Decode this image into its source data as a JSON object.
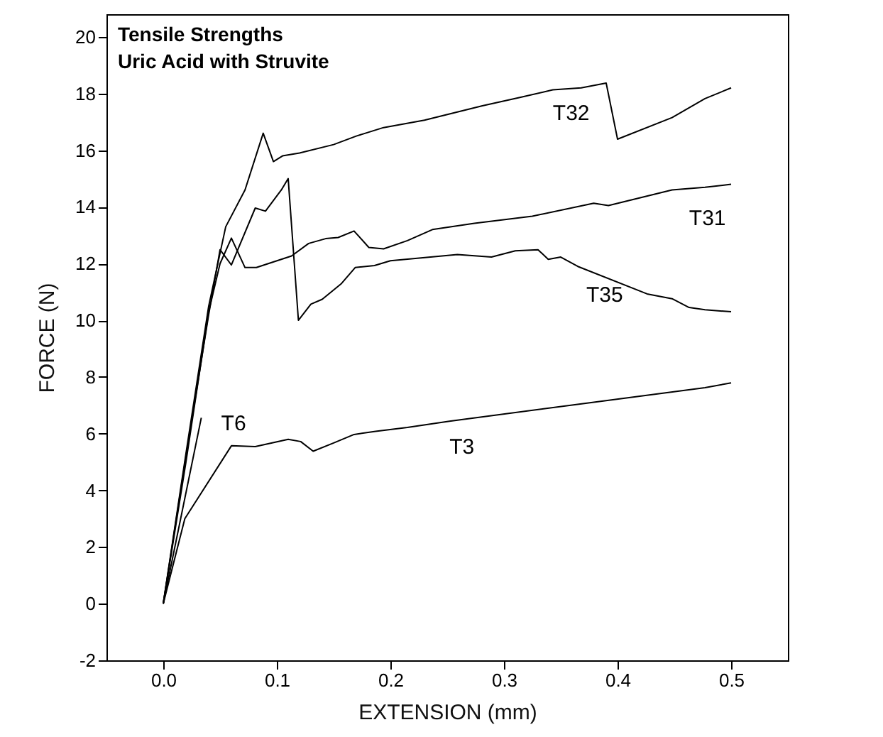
{
  "chart_data": {
    "type": "line",
    "title": "Tensile Strengths",
    "subtitle": "Uric Acid with Struvite",
    "xlabel": "EXTENSION (mm)",
    "ylabel": "FORCE (N)",
    "xlim": [
      -0.05,
      0.55
    ],
    "ylim": [
      -2,
      20.8
    ],
    "xticks": [
      {
        "value": 0,
        "label": "0.0"
      },
      0.1,
      0.2,
      0.3,
      0.4,
      0.5
    ],
    "yticks": [
      -2,
      0,
      2,
      4,
      6,
      8,
      10,
      12,
      14,
      16,
      18,
      20
    ],
    "grid": false,
    "legend": false,
    "marker": "none",
    "line_style": "solid",
    "series": [
      {
        "name": "T32",
        "color": "#000000",
        "x": [
          0,
          0.02,
          0.04,
          0.055,
          0.072,
          0.088,
          0.097,
          0.105,
          0.12,
          0.15,
          0.17,
          0.194,
          0.23,
          0.281,
          0.314,
          0.343,
          0.368,
          0.39,
          0.4,
          0.448,
          0.477,
          0.5
        ],
        "values": [
          0,
          5.3,
          10.5,
          13.3,
          14.6,
          16.6,
          15.6,
          15.8,
          15.9,
          16.2,
          16.5,
          16.8,
          17.06,
          17.57,
          17.86,
          18.13,
          18.2,
          18.37,
          16.39,
          17.15,
          17.82,
          18.2
        ]
      },
      {
        "name": "T31",
        "color": "#000000",
        "x": [
          0,
          0.02,
          0.04,
          0.05,
          0.06,
          0.072,
          0.082,
          0.113,
          0.128,
          0.143,
          0.154,
          0.168,
          0.181,
          0.194,
          0.215,
          0.237,
          0.274,
          0.325,
          0.379,
          0.392,
          0.448,
          0.477,
          0.5
        ],
        "values": [
          0,
          5.0,
          10.3,
          12.0,
          12.9,
          11.86,
          11.86,
          12.27,
          12.71,
          12.88,
          12.92,
          13.15,
          12.57,
          12.52,
          12.81,
          13.2,
          13.42,
          13.67,
          14.13,
          14.05,
          14.6,
          14.69,
          14.8
        ]
      },
      {
        "name": "T35",
        "color": "#000000",
        "x": [
          0,
          0.02,
          0.04,
          0.05,
          0.06,
          0.081,
          0.09,
          0.104,
          0.11,
          0.119,
          0.13,
          0.14,
          0.157,
          0.169,
          0.186,
          0.2,
          0.259,
          0.289,
          0.31,
          0.33,
          0.339,
          0.35,
          0.365,
          0.426,
          0.448,
          0.463,
          0.477,
          0.5
        ],
        "values": [
          0,
          5.2,
          10.2,
          12.49,
          11.95,
          13.96,
          13.85,
          14.6,
          15.0,
          10.0,
          10.57,
          10.74,
          11.3,
          11.86,
          11.93,
          12.1,
          12.32,
          12.23,
          12.45,
          12.49,
          12.15,
          12.23,
          11.9,
          10.93,
          10.76,
          10.45,
          10.37,
          10.3
        ]
      },
      {
        "name": "T6",
        "color": "#000000",
        "x": [
          0,
          0.0335
        ],
        "values": [
          0,
          6.56
        ]
      },
      {
        "name": "T3",
        "color": "#000000",
        "x": [
          0,
          0.019,
          0.06,
          0.081,
          0.11,
          0.121,
          0.132,
          0.15,
          0.168,
          0.187,
          0.215,
          0.252,
          0.372,
          0.477,
          0.5
        ],
        "values": [
          0,
          3.0,
          5.57,
          5.54,
          5.8,
          5.72,
          5.38,
          5.67,
          5.97,
          6.08,
          6.22,
          6.44,
          7.07,
          7.62,
          7.79
        ]
      }
    ]
  }
}
